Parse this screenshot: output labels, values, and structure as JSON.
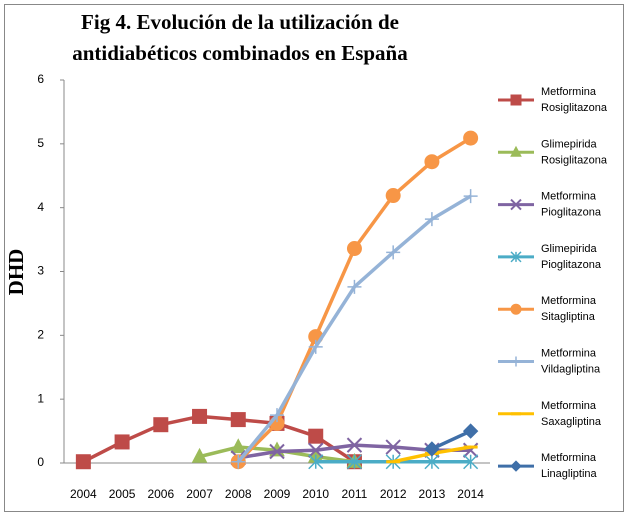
{
  "chart_data": {
    "type": "line",
    "title": [
      "Fig 4. Evolución de la utilización de",
      "antidiabéticos combinados en España"
    ],
    "y_label": "DHD",
    "categories": [
      "2004",
      "2005",
      "2006",
      "2007",
      "2008",
      "2009",
      "2010",
      "2011",
      "2012",
      "2013",
      "2014"
    ],
    "ylim": [
      0,
      6
    ],
    "yticks": [
      0,
      1,
      2,
      3,
      4,
      5,
      6
    ],
    "grid": false,
    "legend": "right",
    "series": [
      {
        "name": "Metformina Rosiglitazona",
        "color": "#be4b48",
        "marker": "square",
        "values": [
          0.02,
          0.33,
          0.6,
          0.73,
          0.68,
          0.62,
          0.42,
          0.02,
          null,
          null,
          null
        ]
      },
      {
        "name": "Glimepirida Rosiglitazona",
        "color": "#9bbb59",
        "marker": "triangle",
        "values": [
          null,
          null,
          null,
          0.1,
          0.25,
          0.2,
          0.1,
          0.02,
          null,
          null,
          null
        ]
      },
      {
        "name": "Metformina Pioglitazona",
        "color": "#7f64a2",
        "marker": "x",
        "values": [
          null,
          null,
          null,
          null,
          0.08,
          0.18,
          0.2,
          0.28,
          0.25,
          0.2,
          0.2
        ]
      },
      {
        "name": "Glimepirida Pioglitazona",
        "color": "#4bacc6",
        "marker": "star",
        "values": [
          null,
          null,
          null,
          null,
          null,
          null,
          0.02,
          0.02,
          0.02,
          0.02,
          0.02
        ]
      },
      {
        "name": "Metformina Sitagliptina",
        "color": "#f79646",
        "marker": "circle",
        "values": [
          null,
          null,
          null,
          null,
          0.02,
          0.62,
          1.98,
          3.36,
          4.19,
          4.72,
          5.09
        ]
      },
      {
        "name": "Metformina Vildagliptina",
        "color": "#95b3d7",
        "marker": "plus",
        "values": [
          null,
          null,
          null,
          null,
          0.02,
          0.75,
          1.82,
          2.76,
          3.3,
          3.82,
          4.18
        ]
      },
      {
        "name": "Metformina Saxagliptina",
        "color": "#ffc000",
        "marker": "dash",
        "values": [
          null,
          null,
          null,
          null,
          null,
          null,
          null,
          null,
          0.02,
          0.15,
          0.25
        ]
      },
      {
        "name": "Metformina Linagliptina",
        "color": "#3f6fa8",
        "marker": "diamond",
        "values": [
          null,
          null,
          null,
          null,
          null,
          null,
          null,
          null,
          null,
          0.22,
          0.5
        ]
      }
    ]
  }
}
